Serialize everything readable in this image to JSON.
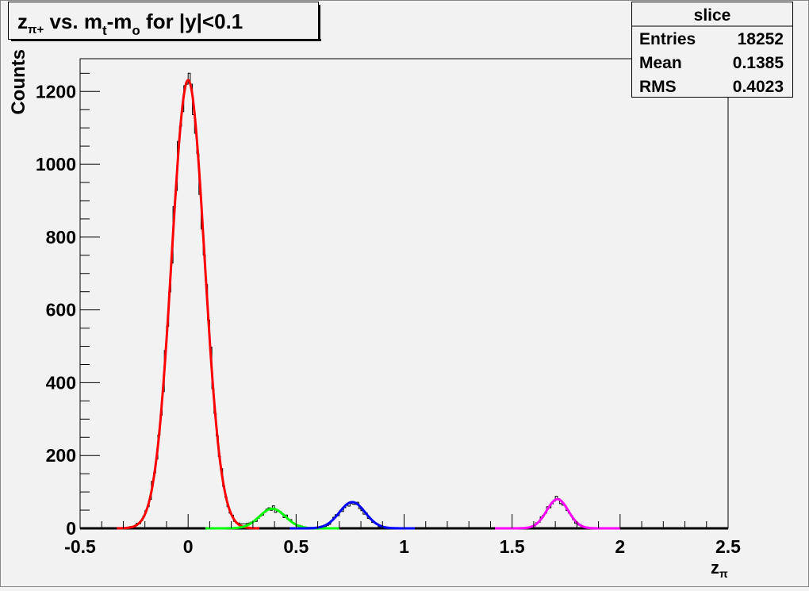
{
  "chart_data": {
    "type": "histogram",
    "title": {
      "main": "z",
      "sub1": "π+",
      "mid1": " vs. m",
      "sub2": "t",
      "mid2": "-m",
      "sub3": "o",
      "tail": " for |y|<0.1"
    },
    "xlabel": {
      "main": "z",
      "sub": "π"
    },
    "ylabel": "Counts",
    "xlim": [
      -0.5,
      2.5
    ],
    "ylim": [
      0,
      1290
    ],
    "x_ticks": [
      "-0.5",
      "0",
      "0.5",
      "1",
      "1.5",
      "2",
      "2.5"
    ],
    "x_tick_values": [
      -0.5,
      0,
      0.5,
      1,
      1.5,
      2,
      2.5
    ],
    "y_ticks": [
      "0",
      "200",
      "400",
      "600",
      "800",
      "1000",
      "1200"
    ],
    "y_tick_values": [
      0,
      200,
      400,
      600,
      800,
      1000,
      1200
    ],
    "bin_width": 0.01,
    "fits": [
      {
        "name": "peak0",
        "color": "#ff0000",
        "amplitude": 1231,
        "mean": 0.0,
        "sigma": 0.076,
        "range": [
          -0.33,
          0.33
        ]
      },
      {
        "name": "peak1",
        "color": "#00ff00",
        "amplitude": 54,
        "mean": 0.39,
        "sigma": 0.06,
        "range": [
          0.08,
          0.7
        ]
      },
      {
        "name": "peak2",
        "color": "#0000ff",
        "amplitude": 72,
        "mean": 0.76,
        "sigma": 0.06,
        "range": [
          0.47,
          1.05
        ]
      },
      {
        "name": "peak3",
        "color": "#ff00ff",
        "amplitude": 80,
        "mean": 1.71,
        "sigma": 0.05,
        "range": [
          1.42,
          2.0
        ]
      }
    ],
    "stats": {
      "title": "slice",
      "rows": [
        {
          "label": "Entries",
          "value": "18252"
        },
        {
          "label": "Mean",
          "value": "0.1385"
        },
        {
          "label": "RMS",
          "value": "0.4023"
        }
      ]
    }
  }
}
